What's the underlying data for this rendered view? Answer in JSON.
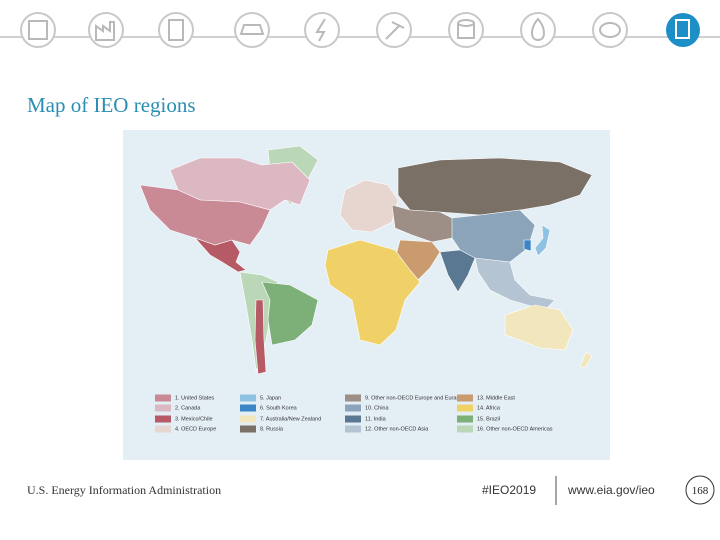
{
  "title": "Map of IEO regions",
  "legend": [
    {
      "label": "1. United States",
      "color": "#c98a96"
    },
    {
      "label": "2. Canada",
      "color": "#dcb9c2"
    },
    {
      "label": "3. Mexico/Chile",
      "color": "#b65a66"
    },
    {
      "label": "4. OECD Europe",
      "color": "#e6d6cf"
    },
    {
      "label": "5. Japan",
      "color": "#8fc1e3"
    },
    {
      "label": "6. South Korea",
      "color": "#3b84c6"
    },
    {
      "label": "7. Australia/New Zealand",
      "color": "#f2e6bd"
    },
    {
      "label": "8. Russia",
      "color": "#7b7066"
    },
    {
      "label": "9. Other non-OECD Europe and Eurasia",
      "color": "#9d8f85"
    },
    {
      "label": "10. China",
      "color": "#8ca4b9"
    },
    {
      "label": "11. India",
      "color": "#5b7892"
    },
    {
      "label": "12. Other non-OECD Asia",
      "color": "#b4c4d2"
    },
    {
      "label": "13. Middle East",
      "color": "#c99b6f"
    },
    {
      "label": "14. Africa",
      "color": "#f0d168"
    },
    {
      "label": "15. Brazil",
      "color": "#7db078"
    },
    {
      "label": "16. Other non-OECD Americas",
      "color": "#bad7b7"
    }
  ],
  "footer": {
    "source": "U.S. Energy Information Administration",
    "hashtag": "#IEO2019",
    "url": "www.eia.gov/ieo",
    "page": "168"
  }
}
